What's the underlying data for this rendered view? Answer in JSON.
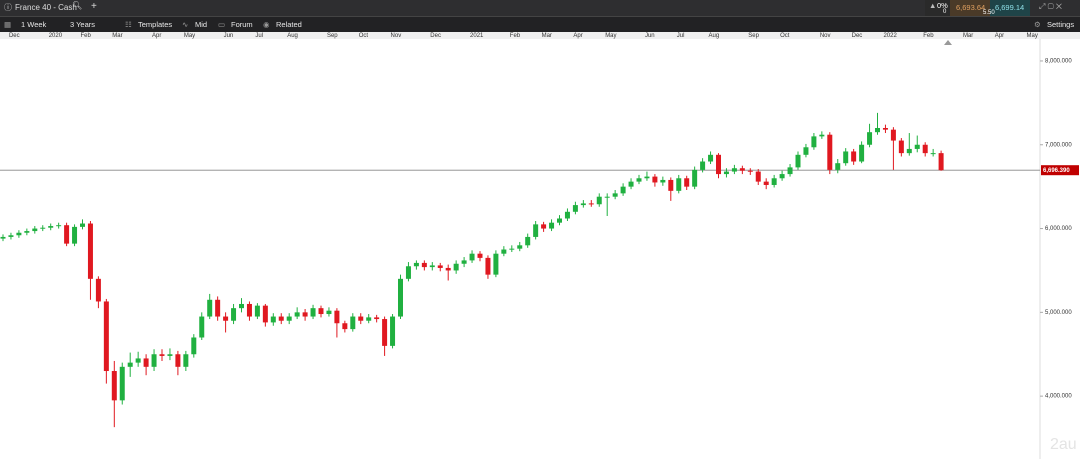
{
  "header": {
    "instrument": "France 40 - Cash",
    "change_percent": "0%",
    "change_points": "0",
    "sell_price": "6,693.64",
    "buy_price": "6,699.14",
    "spread": "5.50"
  },
  "toolbar": {
    "interval": "1 Week",
    "range": "3 Years",
    "templates": "Templates",
    "price_type": "Mid",
    "forum": "Forum",
    "related": "Related",
    "settings": "Settings"
  },
  "watermark": "2au",
  "chart_data": {
    "type": "candlestick",
    "up_color": "#20b040",
    "down_color": "#e01820",
    "categories": [
      null,
      "Dec",
      null,
      null,
      null,
      null,
      "2020",
      null,
      null,
      null,
      "Feb",
      null,
      null,
      null,
      "Mar",
      null,
      null,
      null,
      null,
      "Apr",
      null,
      null,
      null,
      "May",
      null,
      null,
      null,
      null,
      "Jun",
      null,
      null,
      null,
      "Jul",
      null,
      null,
      null,
      "Aug",
      null,
      null,
      null,
      null,
      "Sep",
      null,
      null,
      null,
      "Oct",
      null,
      null,
      null,
      "Nov",
      null,
      null,
      null,
      null,
      "Dec",
      null,
      null,
      null,
      null,
      "2021",
      null,
      null,
      null,
      null,
      "Feb",
      null,
      null,
      null,
      "Mar",
      null,
      null,
      null,
      "Apr",
      null,
      null,
      null,
      "May",
      null,
      null,
      null,
      null,
      "Jun",
      null,
      null,
      null,
      "Jul",
      null,
      null,
      null,
      "Aug",
      null,
      null,
      null,
      null,
      "Sep",
      null,
      null,
      null,
      "Oct",
      null,
      null,
      null,
      null,
      "Nov",
      null,
      null,
      null,
      "Dec",
      null,
      null,
      null,
      "2022",
      null,
      null,
      null,
      null,
      "Feb",
      null,
      null,
      null,
      null,
      "Mar",
      null,
      null,
      null,
      "Apr",
      null,
      null,
      null,
      "May"
    ],
    "open": [
      5880,
      5900,
      5920,
      5950,
      5970,
      6000,
      6010,
      6030,
      6040,
      5820,
      6020,
      6060,
      5400,
      5130,
      4300,
      3950,
      4350,
      4400,
      4450,
      4350,
      4500,
      4480,
      4500,
      4350,
      4500,
      4700,
      4950,
      5150,
      4950,
      4900,
      5050,
      5100,
      4950,
      5080,
      4880,
      4950,
      4900,
      4950,
      5000,
      4950,
      5050,
      4980,
      5020,
      4870,
      4800,
      4950,
      4900,
      4940,
      4920,
      4600,
      4950,
      5400,
      5550,
      5590,
      5540,
      5560,
      5530,
      5500,
      5580,
      5620,
      5700,
      5650,
      5450,
      5700,
      5750,
      5760,
      5800,
      5900,
      6050,
      6000,
      6070,
      6120,
      6200,
      6280,
      6300,
      6290,
      6380,
      6380,
      6420,
      6500,
      6560,
      6600,
      6620,
      6550,
      6580,
      6450,
      6600,
      6500,
      6700,
      6800,
      6880,
      6650,
      6680,
      6720,
      6690,
      6680,
      6560,
      6520,
      6600,
      6650,
      6730,
      6880,
      6970,
      7100,
      7120,
      6700,
      6780,
      6920,
      6800,
      7000,
      7150,
      7200,
      7180,
      7050,
      6900,
      6950,
      7000,
      6900,
      6900,
      null,
      null,
      null,
      null,
      null,
      null,
      null,
      null,
      null,
      null,
      null
    ],
    "high": [
      5930,
      5950,
      5980,
      6000,
      6030,
      6040,
      6060,
      6070,
      6070,
      6050,
      6110,
      6090,
      5430,
      5160,
      4420,
      4400,
      4520,
      4530,
      4500,
      4560,
      4560,
      4570,
      4540,
      4540,
      4740,
      5000,
      5220,
      5190,
      5000,
      5100,
      5170,
      5130,
      5110,
      5100,
      4990,
      4990,
      4990,
      5060,
      5040,
      5090,
      5080,
      5060,
      5050,
      4900,
      4990,
      4990,
      4980,
      4970,
      4950,
      4980,
      5450,
      5600,
      5620,
      5620,
      5600,
      5590,
      5570,
      5620,
      5660,
      5740,
      5730,
      5680,
      5740,
      5790,
      5800,
      5840,
      5940,
      6090,
      6080,
      6110,
      6160,
      6240,
      6320,
      6340,
      6340,
      6420,
      6420,
      6460,
      6540,
      6600,
      6640,
      6680,
      6650,
      6620,
      6610,
      6640,
      6630,
      6740,
      6840,
      6920,
      6900,
      6720,
      6760,
      6750,
      6720,
      6710,
      6600,
      6640,
      6690,
      6770,
      6920,
      7010,
      7140,
      7160,
      7150,
      6830,
      6960,
      6950,
      7040,
      7250,
      7380,
      7240,
      7210,
      7080,
      7140,
      7110,
      7030,
      6950,
      6930,
      null,
      null,
      null,
      null,
      null,
      null,
      null,
      null,
      null,
      null,
      null
    ],
    "low": [
      5850,
      5870,
      5890,
      5920,
      5940,
      5970,
      5980,
      6000,
      5790,
      5790,
      5990,
      5150,
      5050,
      4150,
      3630,
      3900,
      4230,
      4350,
      4250,
      4300,
      4420,
      4430,
      4250,
      4300,
      4460,
      4670,
      4920,
      4900,
      4760,
      4860,
      5000,
      4900,
      4920,
      4830,
      4840,
      4860,
      4860,
      4920,
      4900,
      4920,
      4940,
      4950,
      4700,
      4760,
      4770,
      4860,
      4870,
      4880,
      4480,
      4570,
      4920,
      5370,
      5510,
      5500,
      5500,
      5490,
      5380,
      5460,
      5540,
      5590,
      5610,
      5400,
      5420,
      5670,
      5720,
      5730,
      5770,
      5870,
      5960,
      5970,
      6040,
      6090,
      6170,
      6250,
      6260,
      6260,
      6150,
      6350,
      6390,
      6470,
      6530,
      6570,
      6500,
      6510,
      6330,
      6420,
      6460,
      6470,
      6670,
      6770,
      6600,
      6610,
      6650,
      6650,
      6640,
      6520,
      6470,
      6490,
      6570,
      6620,
      6700,
      6850,
      6940,
      7070,
      6650,
      6660,
      6750,
      6760,
      6780,
      6970,
      7120,
      7140,
      6700,
      6860,
      6870,
      6910,
      6860,
      6860,
      6690,
      null,
      null,
      null,
      null,
      null,
      null,
      null,
      null,
      null,
      null,
      null
    ],
    "close": [
      5900,
      5920,
      5950,
      5970,
      6000,
      6010,
      6030,
      6040,
      5820,
      6020,
      6060,
      5400,
      5130,
      4300,
      3950,
      4350,
      4400,
      4450,
      4350,
      4500,
      4480,
      4500,
      4350,
      4500,
      4700,
      4950,
      5150,
      4950,
      4900,
      5050,
      5100,
      4950,
      5080,
      4880,
      4950,
      4900,
      4950,
      5000,
      4950,
      5050,
      4980,
      5020,
      4870,
      4800,
      4950,
      4900,
      4940,
      4920,
      4600,
      4950,
      5400,
      5550,
      5590,
      5540,
      5560,
      5530,
      5500,
      5580,
      5620,
      5700,
      5650,
      5450,
      5700,
      5750,
      5760,
      5800,
      5900,
      6050,
      6000,
      6070,
      6120,
      6200,
      6280,
      6300,
      6290,
      6380,
      6380,
      6420,
      6500,
      6560,
      6600,
      6620,
      6550,
      6580,
      6450,
      6600,
      6500,
      6700,
      6800,
      6880,
      6650,
      6680,
      6720,
      6690,
      6680,
      6560,
      6520,
      6600,
      6650,
      6730,
      6880,
      6970,
      7100,
      7120,
      6700,
      6780,
      6920,
      6800,
      7000,
      7150,
      7200,
      7180,
      7050,
      6900,
      6950,
      7000,
      6900,
      6900,
      6696.39,
      null,
      null,
      null,
      null,
      null,
      null,
      null,
      null,
      null,
      null,
      null
    ],
    "ylim": [
      3250,
      8262
    ],
    "yticks": [
      {
        "value": 4000,
        "label": "4,000.000"
      },
      {
        "value": 5000,
        "label": "5,000.000"
      },
      {
        "value": 6000,
        "label": "6,000.000"
      },
      {
        "value": 7000,
        "label": "7,000.000"
      },
      {
        "value": 8000,
        "label": "8,000.000"
      }
    ],
    "last_price": {
      "value": 6696.39,
      "label": "6,696.390"
    }
  }
}
